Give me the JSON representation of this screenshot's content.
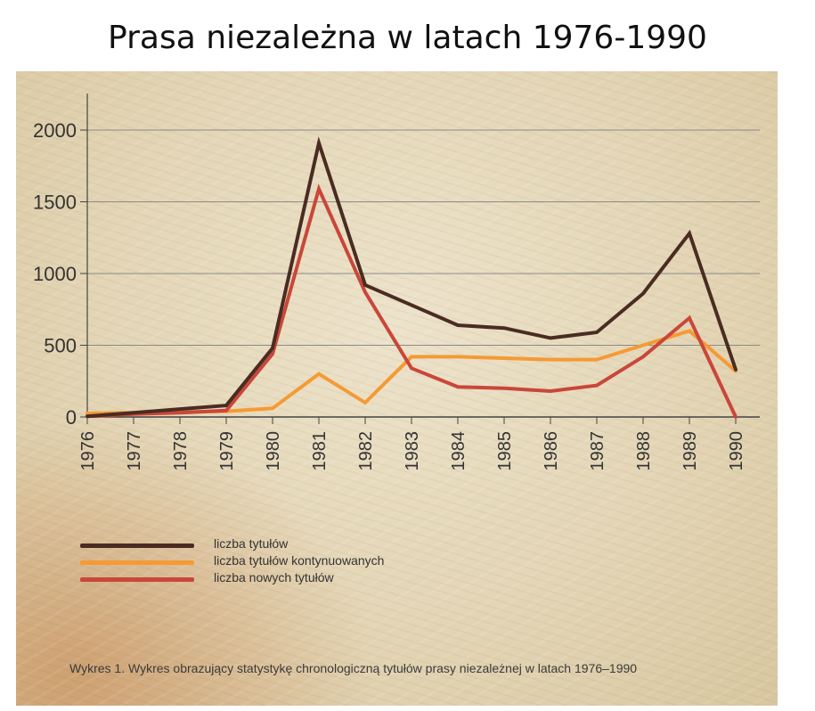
{
  "page": {
    "title": "Prasa niezależna w latach 1976-1990"
  },
  "caption": "Wykres 1. Wykres obrazujący statystykę chronologiczną tytułów prasy niezależnej w latach 1976–1990",
  "colors": {
    "paper": "#e4d7b8",
    "grid": "#8a8a8a",
    "axis": "#444444"
  },
  "chart_data": {
    "type": "line",
    "title": "Prasa niezależna w latach 1976-1990",
    "xlabel": "",
    "ylabel": "",
    "x": [
      "1976",
      "1977",
      "1978",
      "1979",
      "1980",
      "1981",
      "1982",
      "1983",
      "1984",
      "1985",
      "1986",
      "1987",
      "1988",
      "1989",
      "1990"
    ],
    "ylim": [
      0,
      2000
    ],
    "yticks": [
      "0",
      "500",
      "1000",
      "1500",
      "2000"
    ],
    "grid": true,
    "legend_position": "bottom-left",
    "series": [
      {
        "name": "liczba tytułów",
        "color": "#4a2c22",
        "values": [
          5,
          30,
          55,
          80,
          480,
          1910,
          920,
          780,
          640,
          620,
          550,
          590,
          860,
          1280,
          330
        ]
      },
      {
        "name": "liczba tytułów kontynuowanych",
        "color": "#f59a35",
        "values": [
          25,
          30,
          35,
          40,
          60,
          300,
          100,
          420,
          420,
          410,
          400,
          400,
          500,
          600,
          320
        ]
      },
      {
        "name": "liczba nowych tytułów",
        "color": "#c9473a",
        "values": [
          5,
          20,
          30,
          45,
          440,
          1590,
          870,
          340,
          210,
          200,
          180,
          220,
          420,
          690,
          0
        ]
      }
    ]
  }
}
